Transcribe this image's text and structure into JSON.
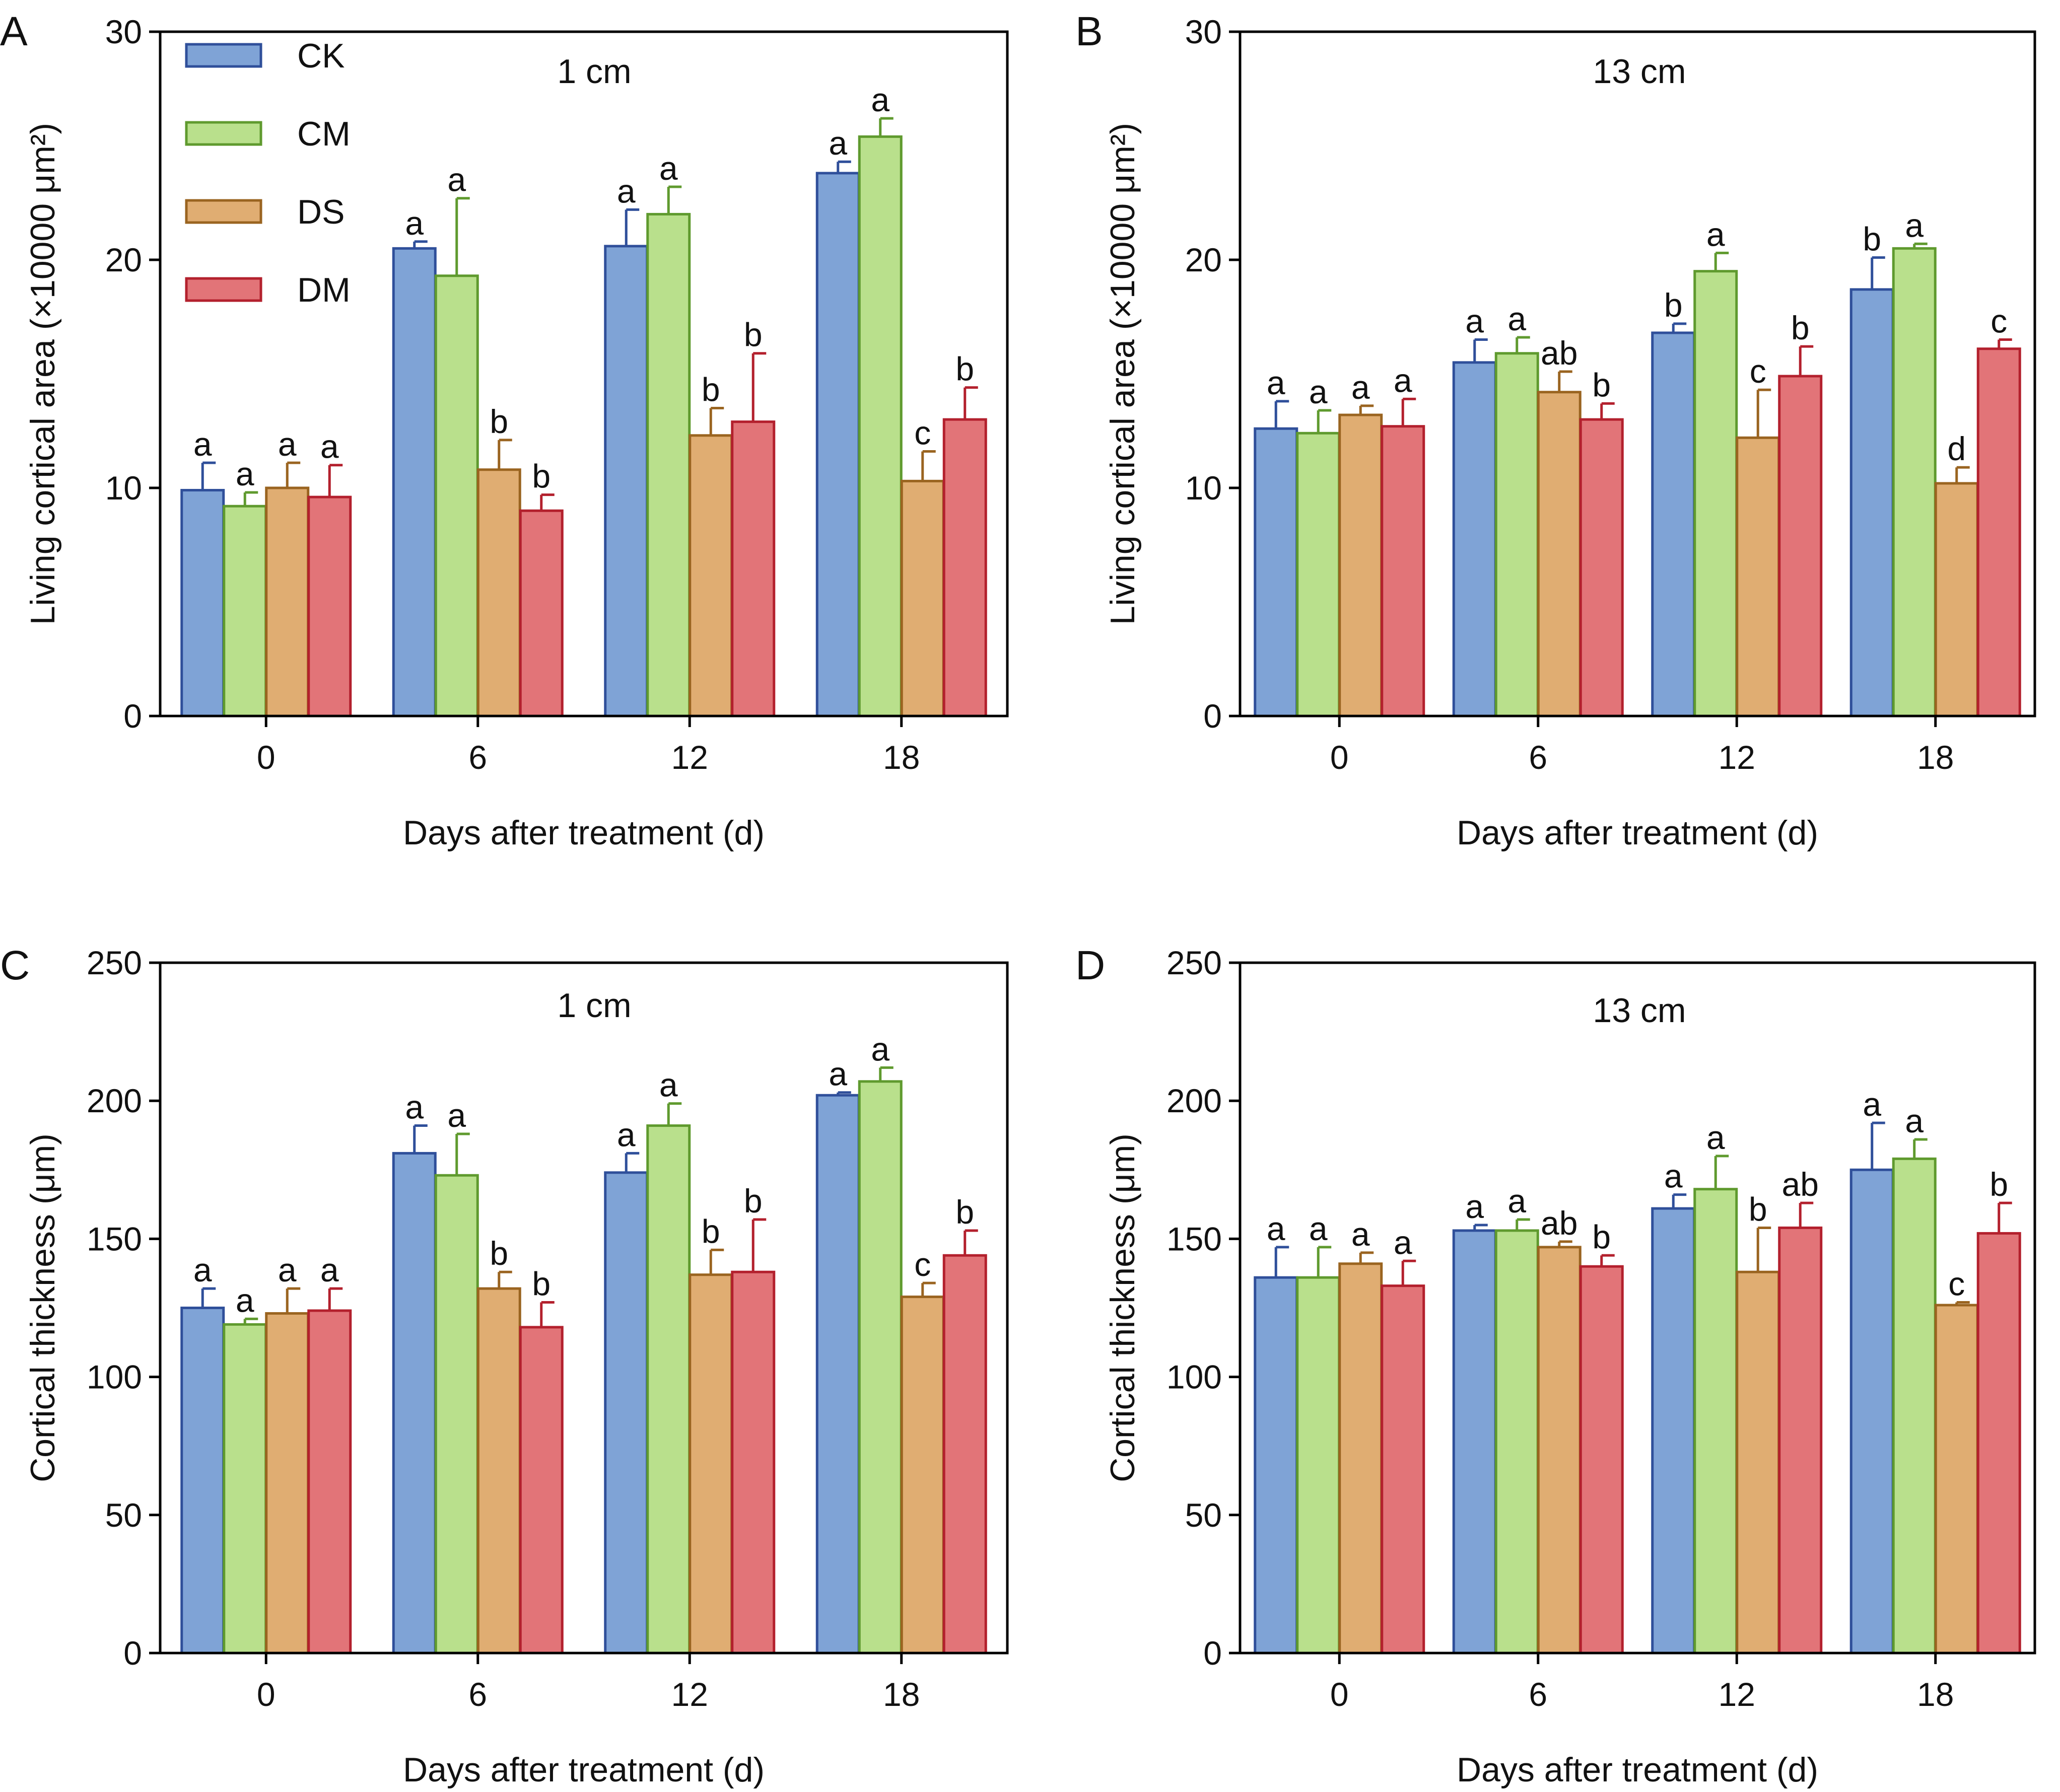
{
  "chart_data": [
    {
      "type": "bar",
      "panel": "A",
      "title": "1 cm",
      "xlabel": "Days after treatment (d)",
      "ylabel": "Living cortical area (×10000 μm²)",
      "ylim": [
        0,
        30
      ],
      "yticks": [
        "0",
        "10",
        "20",
        "30"
      ],
      "categories": [
        "0",
        "6",
        "12",
        "18"
      ],
      "series": [
        {
          "name": "CK",
          "values": [
            9.9,
            20.5,
            20.6,
            23.8
          ],
          "errors": [
            1.2,
            0.3,
            1.6,
            0.5
          ],
          "labels": [
            "a",
            "a",
            "a",
            "a"
          ]
        },
        {
          "name": "CM",
          "values": [
            9.2,
            19.3,
            22.0,
            25.4
          ],
          "errors": [
            0.6,
            3.4,
            1.2,
            0.8
          ],
          "labels": [
            "a",
            "a",
            "a",
            "a"
          ]
        },
        {
          "name": "DS",
          "values": [
            10.0,
            10.8,
            12.3,
            10.3
          ],
          "errors": [
            1.1,
            1.3,
            1.2,
            1.3
          ],
          "labels": [
            "a",
            "b",
            "b",
            "c"
          ]
        },
        {
          "name": "DM",
          "values": [
            9.6,
            9.0,
            12.9,
            13.0
          ],
          "errors": [
            1.4,
            0.7,
            3.0,
            1.4
          ],
          "labels": [
            "a",
            "b",
            "b",
            "b"
          ]
        }
      ],
      "legend": "top-left"
    },
    {
      "type": "bar",
      "panel": "B",
      "title": "13 cm",
      "xlabel": "Days after treatment (d)",
      "ylabel": "Living cortical area (×10000 μm²)",
      "ylim": [
        0,
        30
      ],
      "yticks": [
        "0",
        "10",
        "20",
        "30"
      ],
      "categories": [
        "0",
        "6",
        "12",
        "18"
      ],
      "series": [
        {
          "name": "CK",
          "values": [
            12.6,
            15.5,
            16.8,
            18.7
          ],
          "errors": [
            1.2,
            1.0,
            0.4,
            1.4
          ],
          "labels": [
            "a",
            "a",
            "b",
            "b"
          ]
        },
        {
          "name": "CM",
          "values": [
            12.4,
            15.9,
            19.5,
            20.5
          ],
          "errors": [
            1.0,
            0.7,
            0.8,
            0.2
          ],
          "labels": [
            "a",
            "a",
            "a",
            "a"
          ]
        },
        {
          "name": "DS",
          "values": [
            13.2,
            14.2,
            12.2,
            10.2
          ],
          "errors": [
            0.4,
            0.9,
            2.1,
            0.7
          ],
          "labels": [
            "a",
            "ab",
            "c",
            "d"
          ]
        },
        {
          "name": "DM",
          "values": [
            12.7,
            13.0,
            14.9,
            16.1
          ],
          "errors": [
            1.2,
            0.7,
            1.3,
            0.4
          ],
          "labels": [
            "a",
            "b",
            "b",
            "c"
          ]
        }
      ]
    },
    {
      "type": "bar",
      "panel": "C",
      "title": "1 cm",
      "xlabel": "Days after treatment (d)",
      "ylabel": "Cortical thickness (μm)",
      "ylim": [
        0,
        250
      ],
      "yticks": [
        "0",
        "50",
        "100",
        "150",
        "200",
        "250"
      ],
      "categories": [
        "0",
        "6",
        "12",
        "18"
      ],
      "series": [
        {
          "name": "CK",
          "values": [
            125,
            181,
            174,
            202
          ],
          "errors": [
            7,
            10,
            7,
            1
          ],
          "labels": [
            "a",
            "a",
            "a",
            "a"
          ]
        },
        {
          "name": "CM",
          "values": [
            119,
            173,
            191,
            207
          ],
          "errors": [
            2,
            15,
            8,
            5
          ],
          "labels": [
            "a",
            "a",
            "a",
            "a"
          ]
        },
        {
          "name": "DS",
          "values": [
            123,
            132,
            137,
            129
          ],
          "errors": [
            9,
            6,
            9,
            5
          ],
          "labels": [
            "a",
            "b",
            "b",
            "c"
          ]
        },
        {
          "name": "DM",
          "values": [
            124,
            118,
            138,
            144
          ],
          "errors": [
            8,
            9,
            19,
            9
          ],
          "labels": [
            "a",
            "b",
            "b",
            "b"
          ]
        }
      ]
    },
    {
      "type": "bar",
      "panel": "D",
      "title": "13 cm",
      "xlabel": "Days after treatment (d)",
      "ylabel": "Cortical thickness (μm)",
      "ylim": [
        0,
        250
      ],
      "yticks": [
        "0",
        "50",
        "100",
        "150",
        "200",
        "250"
      ],
      "categories": [
        "0",
        "6",
        "12",
        "18"
      ],
      "series": [
        {
          "name": "CK",
          "values": [
            136,
            153,
            161,
            175
          ],
          "errors": [
            11,
            2,
            5,
            17
          ],
          "labels": [
            "a",
            "a",
            "a",
            "a"
          ]
        },
        {
          "name": "CM",
          "values": [
            136,
            153,
            168,
            179
          ],
          "errors": [
            11,
            4,
            12,
            7
          ],
          "labels": [
            "a",
            "a",
            "a",
            "a"
          ]
        },
        {
          "name": "DS",
          "values": [
            141,
            147,
            138,
            126
          ],
          "errors": [
            4,
            2,
            16,
            1
          ],
          "labels": [
            "a",
            "ab",
            "b",
            "c"
          ]
        },
        {
          "name": "DM",
          "values": [
            133,
            140,
            154,
            152
          ],
          "errors": [
            9,
            4,
            9,
            11
          ],
          "labels": [
            "a",
            "b",
            "ab",
            "b"
          ]
        }
      ]
    }
  ],
  "colors": {
    "CK": {
      "fill": "#7fa3d6",
      "stroke": "#2f4f9a"
    },
    "CM": {
      "fill": "#b9e08c",
      "stroke": "#5f9a2e"
    },
    "DS": {
      "fill": "#e0ad72",
      "stroke": "#9a6420"
    },
    "DM": {
      "fill": "#e27478",
      "stroke": "#b3202d"
    }
  }
}
